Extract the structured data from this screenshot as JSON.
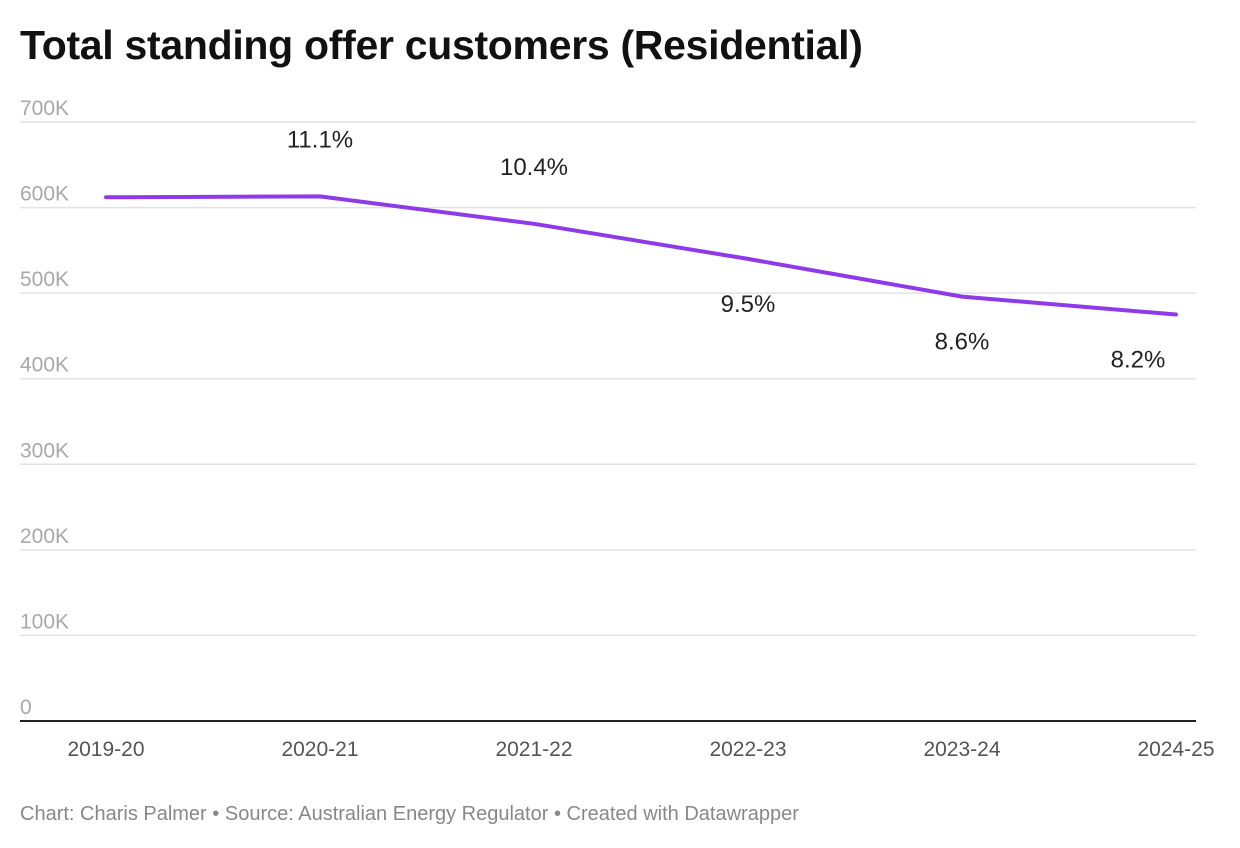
{
  "title": "Total standing offer customers (Residential)",
  "footer": {
    "chart_credit": "Chart: Charis Palmer",
    "separator": "•",
    "source": "Source: Australian Energy Regulator",
    "created_with": "Created with Datawrapper"
  },
  "chart_data": {
    "type": "line",
    "title": "Total standing offer customers (Residential)",
    "xlabel": "",
    "ylabel": "",
    "categories": [
      "2019-20",
      "2020-21",
      "2021-22",
      "2022-23",
      "2023-24",
      "2024-25"
    ],
    "series": [
      {
        "values": [
          612000,
          613000,
          581000,
          540000,
          496000,
          475000
        ],
        "data_labels": [
          "",
          "11.1%",
          "10.4%",
          "9.5%",
          "8.6%",
          "8.2%"
        ],
        "color": "#8e3ae8"
      }
    ],
    "ylim": [
      0,
      700000
    ],
    "yticks": [
      0,
      100000,
      200000,
      300000,
      400000,
      500000,
      600000,
      700000
    ],
    "ytick_labels": [
      "0",
      "100K",
      "200K",
      "300K",
      "400K",
      "500K",
      "600K",
      "700K"
    ],
    "grid": true,
    "legend": "none"
  }
}
